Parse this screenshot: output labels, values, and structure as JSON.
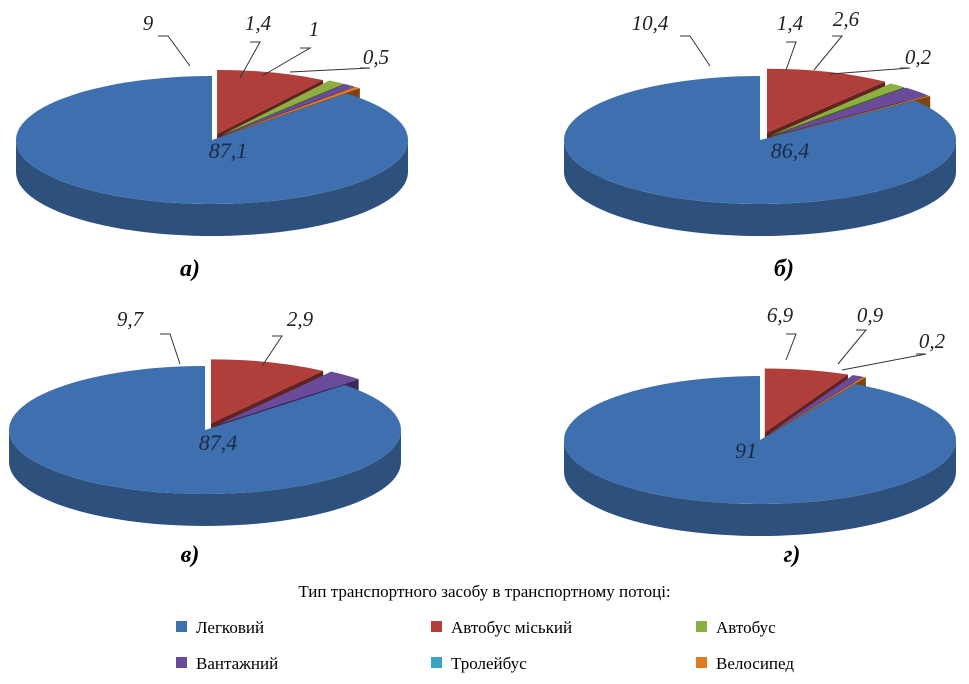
{
  "chart_data": [
    {
      "type": "pie",
      "title": "а)",
      "slices": [
        {
          "name": "Легковий",
          "value": 87.1,
          "label": "87,1"
        },
        {
          "name": "Автобус міський",
          "value": 9,
          "label": "9"
        },
        {
          "name": "Автобус",
          "value": 1.4,
          "label": "1,4"
        },
        {
          "name": "Вантажний",
          "value": 1,
          "label": "1"
        },
        {
          "name": "Тролейбус",
          "value": 0,
          "label": ""
        },
        {
          "name": "Велосипед",
          "value": 0.5,
          "label": "0,5"
        }
      ]
    },
    {
      "type": "pie",
      "title": "б)",
      "slices": [
        {
          "name": "Легковий",
          "value": 86.4,
          "label": "86,4"
        },
        {
          "name": "Автобус міський",
          "value": 10.4,
          "label": "10,4"
        },
        {
          "name": "Автобус",
          "value": 1.4,
          "label": "1,4"
        },
        {
          "name": "Вантажний",
          "value": 2.6,
          "label": "2,6"
        },
        {
          "name": "Тролейбус",
          "value": 0,
          "label": ""
        },
        {
          "name": "Велосипед",
          "value": 0.2,
          "label": "0,2"
        }
      ]
    },
    {
      "type": "pie",
      "title": "в)",
      "slices": [
        {
          "name": "Легковий",
          "value": 87.4,
          "label": "87,4"
        },
        {
          "name": "Автобус міський",
          "value": 9.7,
          "label": "9,7"
        },
        {
          "name": "Автобус",
          "value": 0,
          "label": ""
        },
        {
          "name": "Вантажний",
          "value": 2.9,
          "label": "2,9"
        },
        {
          "name": "Тролейбус",
          "value": 0,
          "label": ""
        },
        {
          "name": "Велосипед",
          "value": 0,
          "label": ""
        }
      ]
    },
    {
      "type": "pie",
      "title": "г)",
      "slices": [
        {
          "name": "Легковий",
          "value": 91,
          "label": "91"
        },
        {
          "name": "Автобус міський",
          "value": 6.9,
          "label": "6,9"
        },
        {
          "name": "Автобус",
          "value": 0,
          "label": ""
        },
        {
          "name": "Вантажний",
          "value": 0.9,
          "label": "0,9"
        },
        {
          "name": "Тролейбус",
          "value": 0,
          "label": ""
        },
        {
          "name": "Велосипед",
          "value": 0.2,
          "label": "0,2"
        }
      ]
    }
  ],
  "legend": {
    "title": "Тип транспортного засобу в транспортному потоці:",
    "placement": "bottom",
    "items": [
      {
        "name": "Легковий",
        "color": "#3e6fae"
      },
      {
        "name": "Автобус міський",
        "color": "#b03e3b"
      },
      {
        "name": "Автобус",
        "color": "#8bb040"
      },
      {
        "name": "Вантажний",
        "color": "#6a4b9a"
      },
      {
        "name": "Тролейбус",
        "color": "#3aa3c3"
      },
      {
        "name": "Велосипед",
        "color": "#e07b22"
      }
    ]
  }
}
